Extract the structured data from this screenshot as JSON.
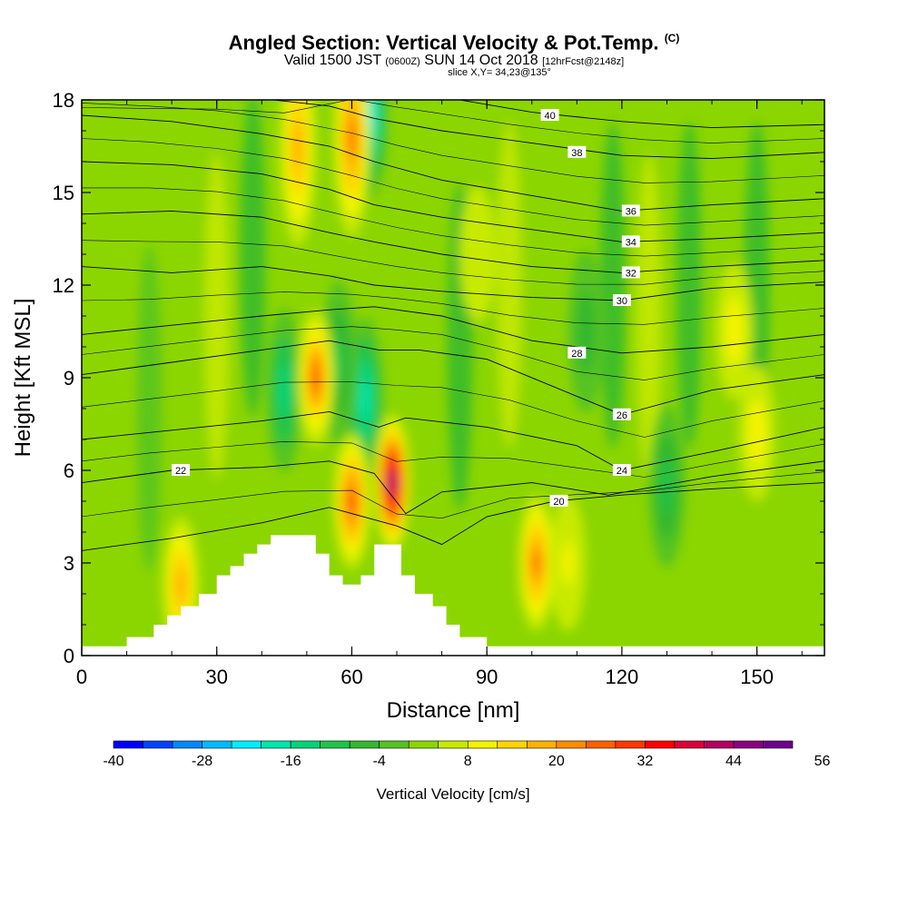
{
  "chart_data": {
    "type": "heatmap",
    "title": "Angled Section: Vertical Velocity & Pot.Temp.",
    "title_tag": "(C)",
    "subtitle_parts": [
      "Valid 1500 JST ",
      "(0600Z)",
      " SUN 14 Oct 2018 ",
      "[12hrFcst@2148z]"
    ],
    "slice_label": "slice X,Y= 34,23@135°",
    "xlabel": "Distance [nm]",
    "ylabel": "Height [Kft MSL]",
    "xlim": [
      0,
      165
    ],
    "ylim": [
      0,
      18
    ],
    "x_ticks": [
      "0",
      "30",
      "60",
      "90",
      "120",
      "150"
    ],
    "y_ticks": [
      "0",
      "3",
      "6",
      "9",
      "12",
      "15",
      "18"
    ],
    "colorbar": {
      "label": "Vertical Velocity [cm/s]",
      "tick_labels": [
        "-40",
        "-28",
        "-16",
        "-4",
        "8",
        "20",
        "32",
        "44",
        "56"
      ],
      "colors": [
        "#0000ff",
        "#0044ff",
        "#0088ff",
        "#00bbff",
        "#00eeff",
        "#00e6aa",
        "#00d478",
        "#1ec44a",
        "#33b82e",
        "#55c322",
        "#8cd600",
        "#c8ea00",
        "#f4f400",
        "#ffd400",
        "#ffb000",
        "#ff8c00",
        "#ff6000",
        "#ff3800",
        "#ff0000",
        "#dc0038",
        "#b40060",
        "#8c007f",
        "#6e008c"
      ]
    },
    "terrain_kft": [
      [
        0,
        0.3
      ],
      [
        10,
        0.3
      ],
      [
        10,
        0.6
      ],
      [
        16,
        0.6
      ],
      [
        16,
        1.0
      ],
      [
        19,
        1.0
      ],
      [
        19,
        1.3
      ],
      [
        22,
        1.3
      ],
      [
        22,
        1.6
      ],
      [
        26,
        1.6
      ],
      [
        26,
        2.0
      ],
      [
        30,
        2.0
      ],
      [
        30,
        2.6
      ],
      [
        33,
        2.6
      ],
      [
        33,
        2.9
      ],
      [
        36,
        2.9
      ],
      [
        36,
        3.3
      ],
      [
        39,
        3.3
      ],
      [
        39,
        3.6
      ],
      [
        42,
        3.6
      ],
      [
        42,
        3.9
      ],
      [
        52,
        3.9
      ],
      [
        52,
        3.3
      ],
      [
        55,
        3.3
      ],
      [
        55,
        2.6
      ],
      [
        58,
        2.6
      ],
      [
        58,
        2.3
      ],
      [
        62,
        2.3
      ],
      [
        62,
        2.6
      ],
      [
        65,
        2.6
      ],
      [
        65,
        3.6
      ],
      [
        71,
        3.6
      ],
      [
        71,
        2.6
      ],
      [
        74,
        2.6
      ],
      [
        74,
        2.0
      ],
      [
        78,
        2.0
      ],
      [
        78,
        1.6
      ],
      [
        81,
        1.6
      ],
      [
        81,
        1.0
      ],
      [
        84,
        1.0
      ],
      [
        84,
        0.6
      ],
      [
        90,
        0.6
      ],
      [
        90,
        0.3
      ],
      [
        165,
        0.3
      ]
    ],
    "updraft_cells": [
      {
        "x": 22,
        "z": 2.3,
        "w": 18
      },
      {
        "x": 48,
        "z": 16.5,
        "w": 18
      },
      {
        "x": 60,
        "z": 16.8,
        "w": 24
      },
      {
        "x": 69,
        "z": 5.6,
        "w": 46
      },
      {
        "x": 52,
        "z": 9.0,
        "w": 26
      },
      {
        "x": 60,
        "z": 5.0,
        "w": 28
      },
      {
        "x": 101,
        "z": 3.0,
        "w": 24
      },
      {
        "x": 108,
        "z": 3.0,
        "w": 10
      },
      {
        "x": 150,
        "z": 7.2,
        "w": 8
      },
      {
        "x": 145,
        "z": 10.5,
        "w": 8
      },
      {
        "x": 88,
        "z": 13.0,
        "w": 6
      }
    ],
    "downdraft_cells": [
      {
        "x": 64,
        "z": 17.5,
        "w": -22
      },
      {
        "x": 63,
        "z": 8.3,
        "w": -18
      },
      {
        "x": 45,
        "z": 8.6,
        "w": -14
      },
      {
        "x": 57,
        "z": 9.5,
        "w": -12
      },
      {
        "x": 130,
        "z": 5.5,
        "w": -10
      },
      {
        "x": 112,
        "z": 10.5,
        "w": -8
      }
    ],
    "isentropes": [
      {
        "theta": "20",
        "label_at": [
          106,
          5.0
        ],
        "points": [
          [
            0,
            3.4
          ],
          [
            20,
            3.8
          ],
          [
            40,
            4.3
          ],
          [
            55,
            4.8
          ],
          [
            70,
            4.2
          ],
          [
            80,
            3.6
          ],
          [
            90,
            4.5
          ],
          [
            105,
            5.0
          ],
          [
            120,
            5.2
          ],
          [
            140,
            5.4
          ],
          [
            165,
            5.6
          ]
        ]
      },
      {
        "theta": "22",
        "label_at": [
          22,
          6.0
        ],
        "points": [
          [
            0,
            5.6
          ],
          [
            20,
            6.0
          ],
          [
            40,
            6.1
          ],
          [
            55,
            6.3
          ],
          [
            65,
            5.9
          ],
          [
            72,
            4.6
          ],
          [
            80,
            5.3
          ],
          [
            100,
            5.6
          ],
          [
            117,
            5.2
          ],
          [
            140,
            5.8
          ],
          [
            165,
            6.3
          ]
        ]
      },
      {
        "theta": "24",
        "label_at": [
          120,
          6.0
        ],
        "points": [
          [
            0,
            7.0
          ],
          [
            20,
            7.3
          ],
          [
            40,
            7.6
          ],
          [
            55,
            7.9
          ],
          [
            66,
            7.4
          ],
          [
            72,
            7.7
          ],
          [
            90,
            7.4
          ],
          [
            110,
            6.8
          ],
          [
            120,
            6.0
          ],
          [
            140,
            6.6
          ],
          [
            165,
            7.4
          ]
        ]
      },
      {
        "theta": "26",
        "label_at": [
          120,
          7.8
        ],
        "points": [
          [
            0,
            9.1
          ],
          [
            20,
            9.5
          ],
          [
            40,
            9.9
          ],
          [
            55,
            10.2
          ],
          [
            66,
            9.9
          ],
          [
            75,
            9.9
          ],
          [
            90,
            9.6
          ],
          [
            110,
            8.4
          ],
          [
            120,
            7.8
          ],
          [
            140,
            8.6
          ],
          [
            165,
            9.1
          ]
        ]
      },
      {
        "theta": "28",
        "label_at": [
          110,
          9.8
        ],
        "points": [
          [
            0,
            10.4
          ],
          [
            20,
            10.7
          ],
          [
            40,
            11.0
          ],
          [
            55,
            11.2
          ],
          [
            65,
            11.3
          ],
          [
            80,
            11.0
          ],
          [
            100,
            10.2
          ],
          [
            120,
            9.8
          ],
          [
            140,
            10.0
          ],
          [
            165,
            10.4
          ]
        ]
      },
      {
        "theta": "30",
        "label_at": [
          120,
          11.5
        ],
        "points": [
          [
            0,
            12.6
          ],
          [
            20,
            12.4
          ],
          [
            40,
            12.6
          ],
          [
            55,
            12.3
          ],
          [
            65,
            12.0
          ],
          [
            80,
            11.8
          ],
          [
            100,
            11.6
          ],
          [
            120,
            11.5
          ],
          [
            140,
            11.9
          ],
          [
            165,
            12.1
          ]
        ]
      },
      {
        "theta": "32",
        "label_at": [
          122,
          12.4
        ],
        "points": [
          [
            0,
            14.3
          ],
          [
            20,
            14.4
          ],
          [
            40,
            14.2
          ],
          [
            55,
            13.7
          ],
          [
            65,
            13.4
          ],
          [
            80,
            13.0
          ],
          [
            100,
            12.6
          ],
          [
            120,
            12.4
          ],
          [
            140,
            12.6
          ],
          [
            165,
            12.8
          ]
        ]
      },
      {
        "theta": "34",
        "label_at": [
          122,
          13.4
        ],
        "points": [
          [
            0,
            16.0
          ],
          [
            20,
            15.9
          ],
          [
            40,
            15.6
          ],
          [
            55,
            15.1
          ],
          [
            65,
            14.6
          ],
          [
            80,
            14.2
          ],
          [
            100,
            13.8
          ],
          [
            120,
            13.4
          ],
          [
            140,
            13.5
          ],
          [
            165,
            13.7
          ]
        ]
      },
      {
        "theta": "36",
        "label_at": [
          122,
          14.4
        ],
        "points": [
          [
            0,
            17.5
          ],
          [
            20,
            17.3
          ],
          [
            40,
            16.9
          ],
          [
            55,
            16.5
          ],
          [
            65,
            16.0
          ],
          [
            80,
            15.4
          ],
          [
            100,
            14.9
          ],
          [
            120,
            14.4
          ],
          [
            140,
            14.6
          ],
          [
            165,
            14.8
          ]
        ]
      },
      {
        "theta": "38",
        "label_at": [
          110,
          16.3
        ],
        "points": [
          [
            0,
            18.3
          ],
          [
            30,
            18.2
          ],
          [
            55,
            17.8
          ],
          [
            65,
            17.4
          ],
          [
            80,
            17.0
          ],
          [
            100,
            16.6
          ],
          [
            120,
            16.2
          ],
          [
            140,
            16.1
          ],
          [
            165,
            16.3
          ]
        ]
      },
      {
        "theta": "40",
        "label_at": [
          104,
          17.5
        ],
        "points": [
          [
            50,
            18.6
          ],
          [
            80,
            18.1
          ],
          [
            100,
            17.6
          ],
          [
            120,
            17.3
          ],
          [
            140,
            17.1
          ],
          [
            165,
            17.2
          ]
        ]
      }
    ]
  }
}
